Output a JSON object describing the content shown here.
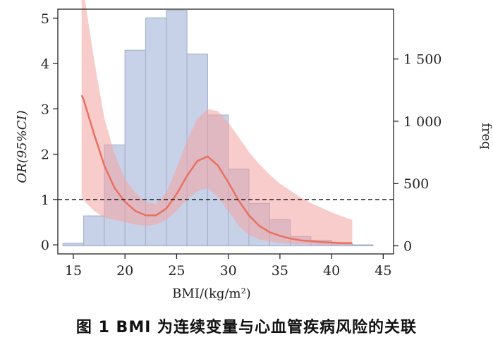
{
  "caption": "图 1 BMI 为连续变量与心血管疾病风险的关联",
  "chart_data": {
    "type": "histogram+line",
    "xlabel": "BMI/(kg/m²)",
    "ylabel_left": "OR(95%CI)",
    "ylabel_right": "freq",
    "xlim": [
      13.5,
      46
    ],
    "ylim_left": [
      -0.2,
      5.2
    ],
    "ylim_right": [
      -65,
      1900
    ],
    "x_ticks": [
      15,
      20,
      25,
      30,
      35,
      40,
      45
    ],
    "y_left_ticks": [
      0,
      1,
      2,
      3,
      4,
      5
    ],
    "y_right_ticks": [
      {
        "value": 0,
        "label": "0"
      },
      {
        "value": 500,
        "label": "500"
      },
      {
        "value": 1000,
        "label": "1 000"
      },
      {
        "value": 1500,
        "label": "1 500"
      }
    ],
    "reference_line": {
      "y": 1,
      "style": "dashed"
    },
    "histogram": {
      "color": "#c7d2e8",
      "edge": "#a7b3cc",
      "bin_width": 2,
      "bins": [
        {
          "x0": 14,
          "freq": 20
        },
        {
          "x0": 16,
          "freq": 240
        },
        {
          "x0": 18,
          "freq": 810
        },
        {
          "x0": 20,
          "freq": 1570
        },
        {
          "x0": 22,
          "freq": 1830
        },
        {
          "x0": 24,
          "freq": 1890
        },
        {
          "x0": 26,
          "freq": 1540
        },
        {
          "x0": 28,
          "freq": 1050
        },
        {
          "x0": 30,
          "freq": 615
        },
        {
          "x0": 32,
          "freq": 340
        },
        {
          "x0": 34,
          "freq": 210
        },
        {
          "x0": 36,
          "freq": 75
        },
        {
          "x0": 38,
          "freq": 45
        },
        {
          "x0": 40,
          "freq": 15
        },
        {
          "x0": 42,
          "freq": 8
        }
      ]
    },
    "or_curve": {
      "color": "#e8715f",
      "band_color": "#f4a3a3",
      "x": [
        15.8,
        16,
        17,
        18,
        19,
        20,
        21,
        22,
        23,
        24,
        25,
        26,
        27,
        28,
        29,
        30,
        31,
        32,
        33,
        34,
        35,
        36,
        37,
        38,
        39,
        40,
        41,
        42
      ],
      "or": [
        3.3,
        3.2,
        2.45,
        1.75,
        1.25,
        0.95,
        0.75,
        0.65,
        0.65,
        0.8,
        1.12,
        1.52,
        1.85,
        1.95,
        1.75,
        1.38,
        0.98,
        0.65,
        0.42,
        0.28,
        0.2,
        0.14,
        0.1,
        0.08,
        0.06,
        0.05,
        0.04,
        0.04
      ],
      "upper": [
        5.8,
        5.6,
        4.1,
        2.8,
        2.0,
        1.45,
        1.15,
        0.95,
        0.9,
        1.15,
        1.7,
        2.3,
        2.78,
        3.0,
        2.95,
        2.7,
        2.38,
        2.05,
        1.78,
        1.55,
        1.35,
        1.2,
        1.05,
        0.92,
        0.82,
        0.72,
        0.63,
        0.55
      ],
      "lower": [
        1.0,
        0.98,
        0.75,
        0.6,
        0.55,
        0.5,
        0.45,
        0.42,
        0.45,
        0.55,
        0.75,
        1.0,
        1.18,
        1.25,
        1.05,
        0.75,
        0.42,
        0.22,
        0.12,
        0.07,
        0.04,
        0.02,
        0.01,
        0.01,
        0.0,
        0.0,
        0.0,
        0.0
      ]
    }
  }
}
